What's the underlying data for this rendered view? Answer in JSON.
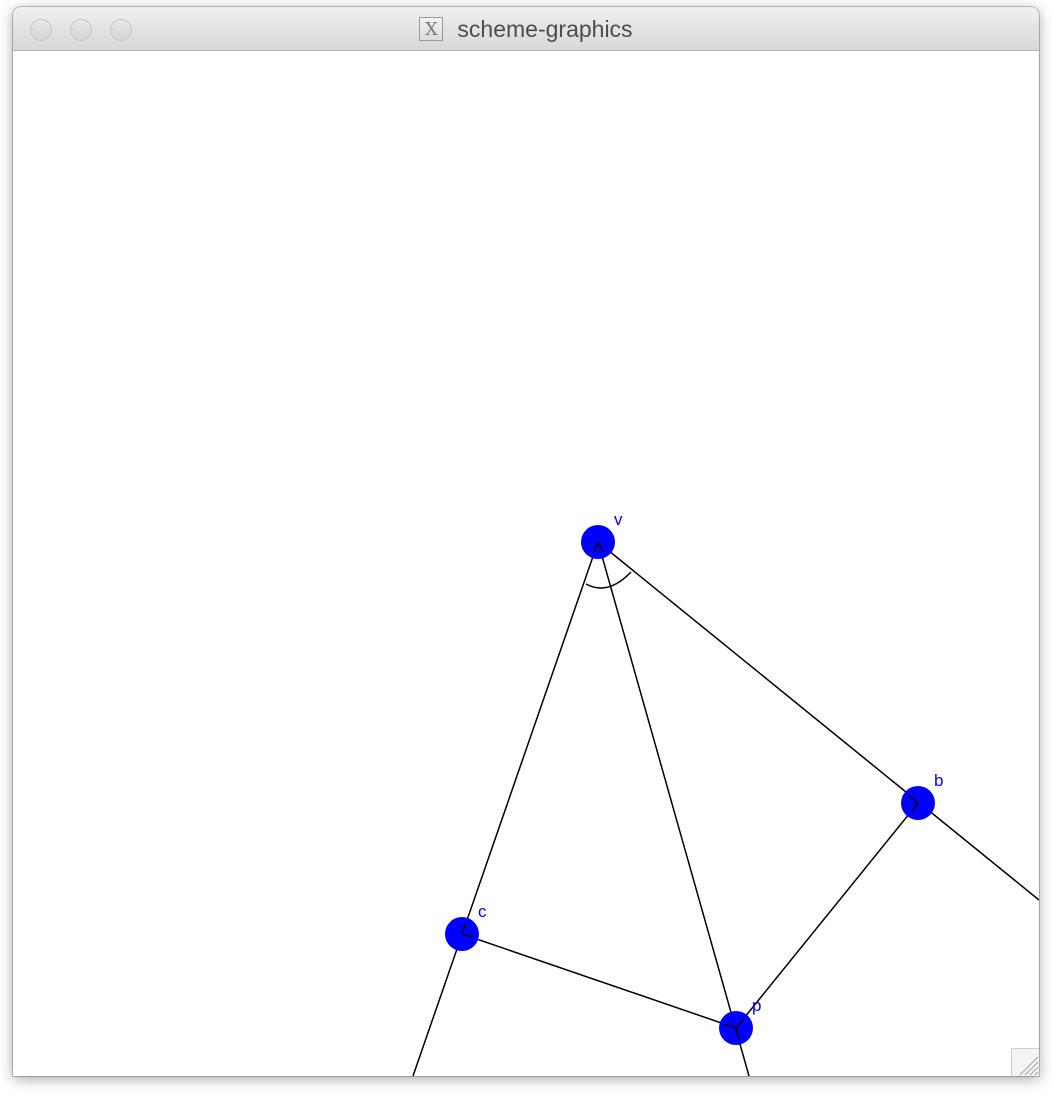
{
  "window": {
    "title": "scheme-graphics",
    "title_icon": "x11-icon",
    "title_icon_glyph": "X"
  },
  "canvas": {
    "background": "#ffffff",
    "point_color": "#0000ff",
    "line_color": "#000000",
    "points": [
      {
        "id": "v",
        "label": "v"
      },
      {
        "id": "b",
        "label": "b"
      },
      {
        "id": "c",
        "label": "c"
      },
      {
        "id": "p",
        "label": "p"
      }
    ]
  }
}
